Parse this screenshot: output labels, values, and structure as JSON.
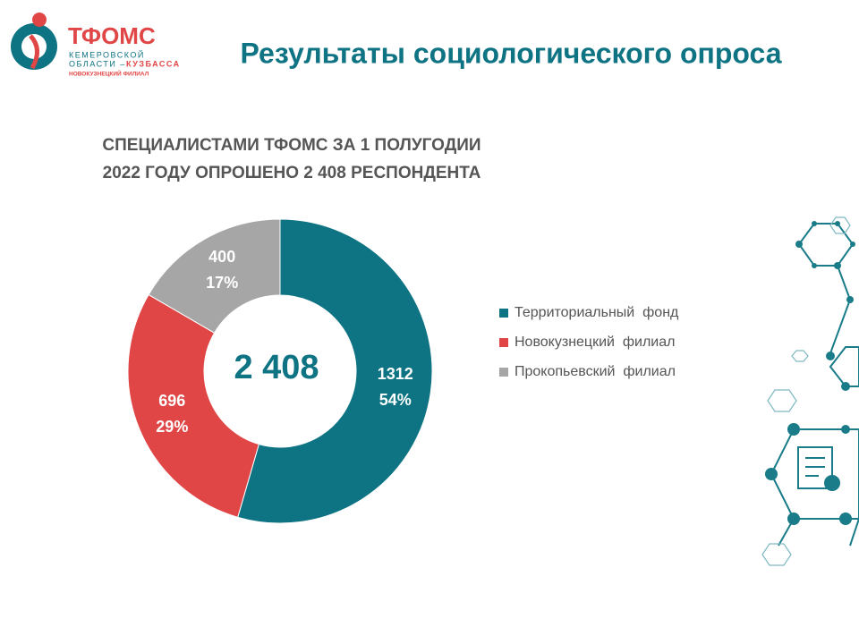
{
  "logo": {
    "name": "ТФОМС",
    "line1": "КЕМЕРОВСКОЙ",
    "line2a": "ОБЛАСТИ –",
    "line2b": "КУЗБАССА",
    "line3": "НОВОКУЗНЕЦКИЙ ФИЛИАЛ"
  },
  "title": "Результаты социологического опроса",
  "chart_data": {
    "type": "donut",
    "subtitle": [
      "СПЕЦИАЛИСТАМИ ТФОМС ЗА 1 ПОЛУГОДИИ",
      "2022 ГОДУ ОПРОШЕНО 2 408 РЕСПОНДЕНТА"
    ],
    "center_label": "2 408",
    "categories": [
      "Территориальный  фонд",
      "Новокузнецкий  филиал",
      "Прокопьевский  филиал"
    ],
    "values": [
      1312,
      696,
      400
    ],
    "percent_labels": [
      "54%",
      "29%",
      "17%"
    ],
    "colors": [
      "#0e7383",
      "#e04646",
      "#a6a6a6"
    ],
    "legend": "right"
  }
}
